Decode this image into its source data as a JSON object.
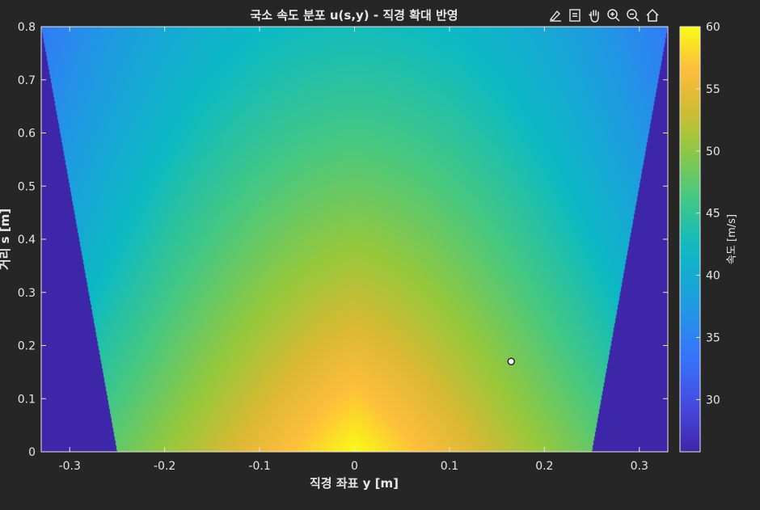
{
  "figure": {
    "background": "#262626",
    "axes_background": "#262626",
    "text_color": "#e6e6e6",
    "axes_edge": "#e6e6e6"
  },
  "toolbar": {
    "icons": [
      "brush-icon",
      "datatip-icon",
      "pan-hand-icon",
      "zoom-in-icon",
      "zoom-out-icon",
      "home-icon"
    ]
  },
  "chart_data": {
    "type": "heatmap",
    "title": "국소 속도 분포 u(s,y) - 직경 확대 반영",
    "xlabel": "직경 좌표 y [m]",
    "ylabel": "거리 s [m]",
    "xlim": [
      -0.33,
      0.33
    ],
    "ylim": [
      0,
      0.8
    ],
    "xticks": [
      -0.3,
      -0.2,
      -0.1,
      0,
      0.1,
      0.2,
      0.3
    ],
    "xtick_labels": [
      "-0.3",
      "-0.2",
      "-0.1",
      "0",
      "0.1",
      "0.2",
      "0.3"
    ],
    "yticks": [
      0,
      0.1,
      0.2,
      0.3,
      0.4,
      0.5,
      0.6,
      0.7,
      0.8
    ],
    "ytick_labels": [
      "0",
      "0.1",
      "0.2",
      "0.3",
      "0.4",
      "0.5",
      "0.6",
      "0.7",
      "0.8"
    ],
    "colormap": "parula",
    "colorbar": {
      "label": "속도 [m/s]",
      "clim": [
        25.8,
        60
      ],
      "ticks": [
        30,
        35,
        40,
        45,
        50,
        55,
        60
      ],
      "tick_labels": [
        "30",
        "35",
        "40",
        "45",
        "50",
        "55",
        "60"
      ]
    },
    "field": {
      "center_velocity_at_outlet": 60,
      "outlet_half_width": 0.25,
      "half_width_at_s_0.8": 0.33,
      "outside_value": 25.8
    },
    "marker": {
      "y": 0.165,
      "s": 0.17,
      "shape": "circle",
      "fill": "#ffffff",
      "edge": "#262626"
    }
  }
}
